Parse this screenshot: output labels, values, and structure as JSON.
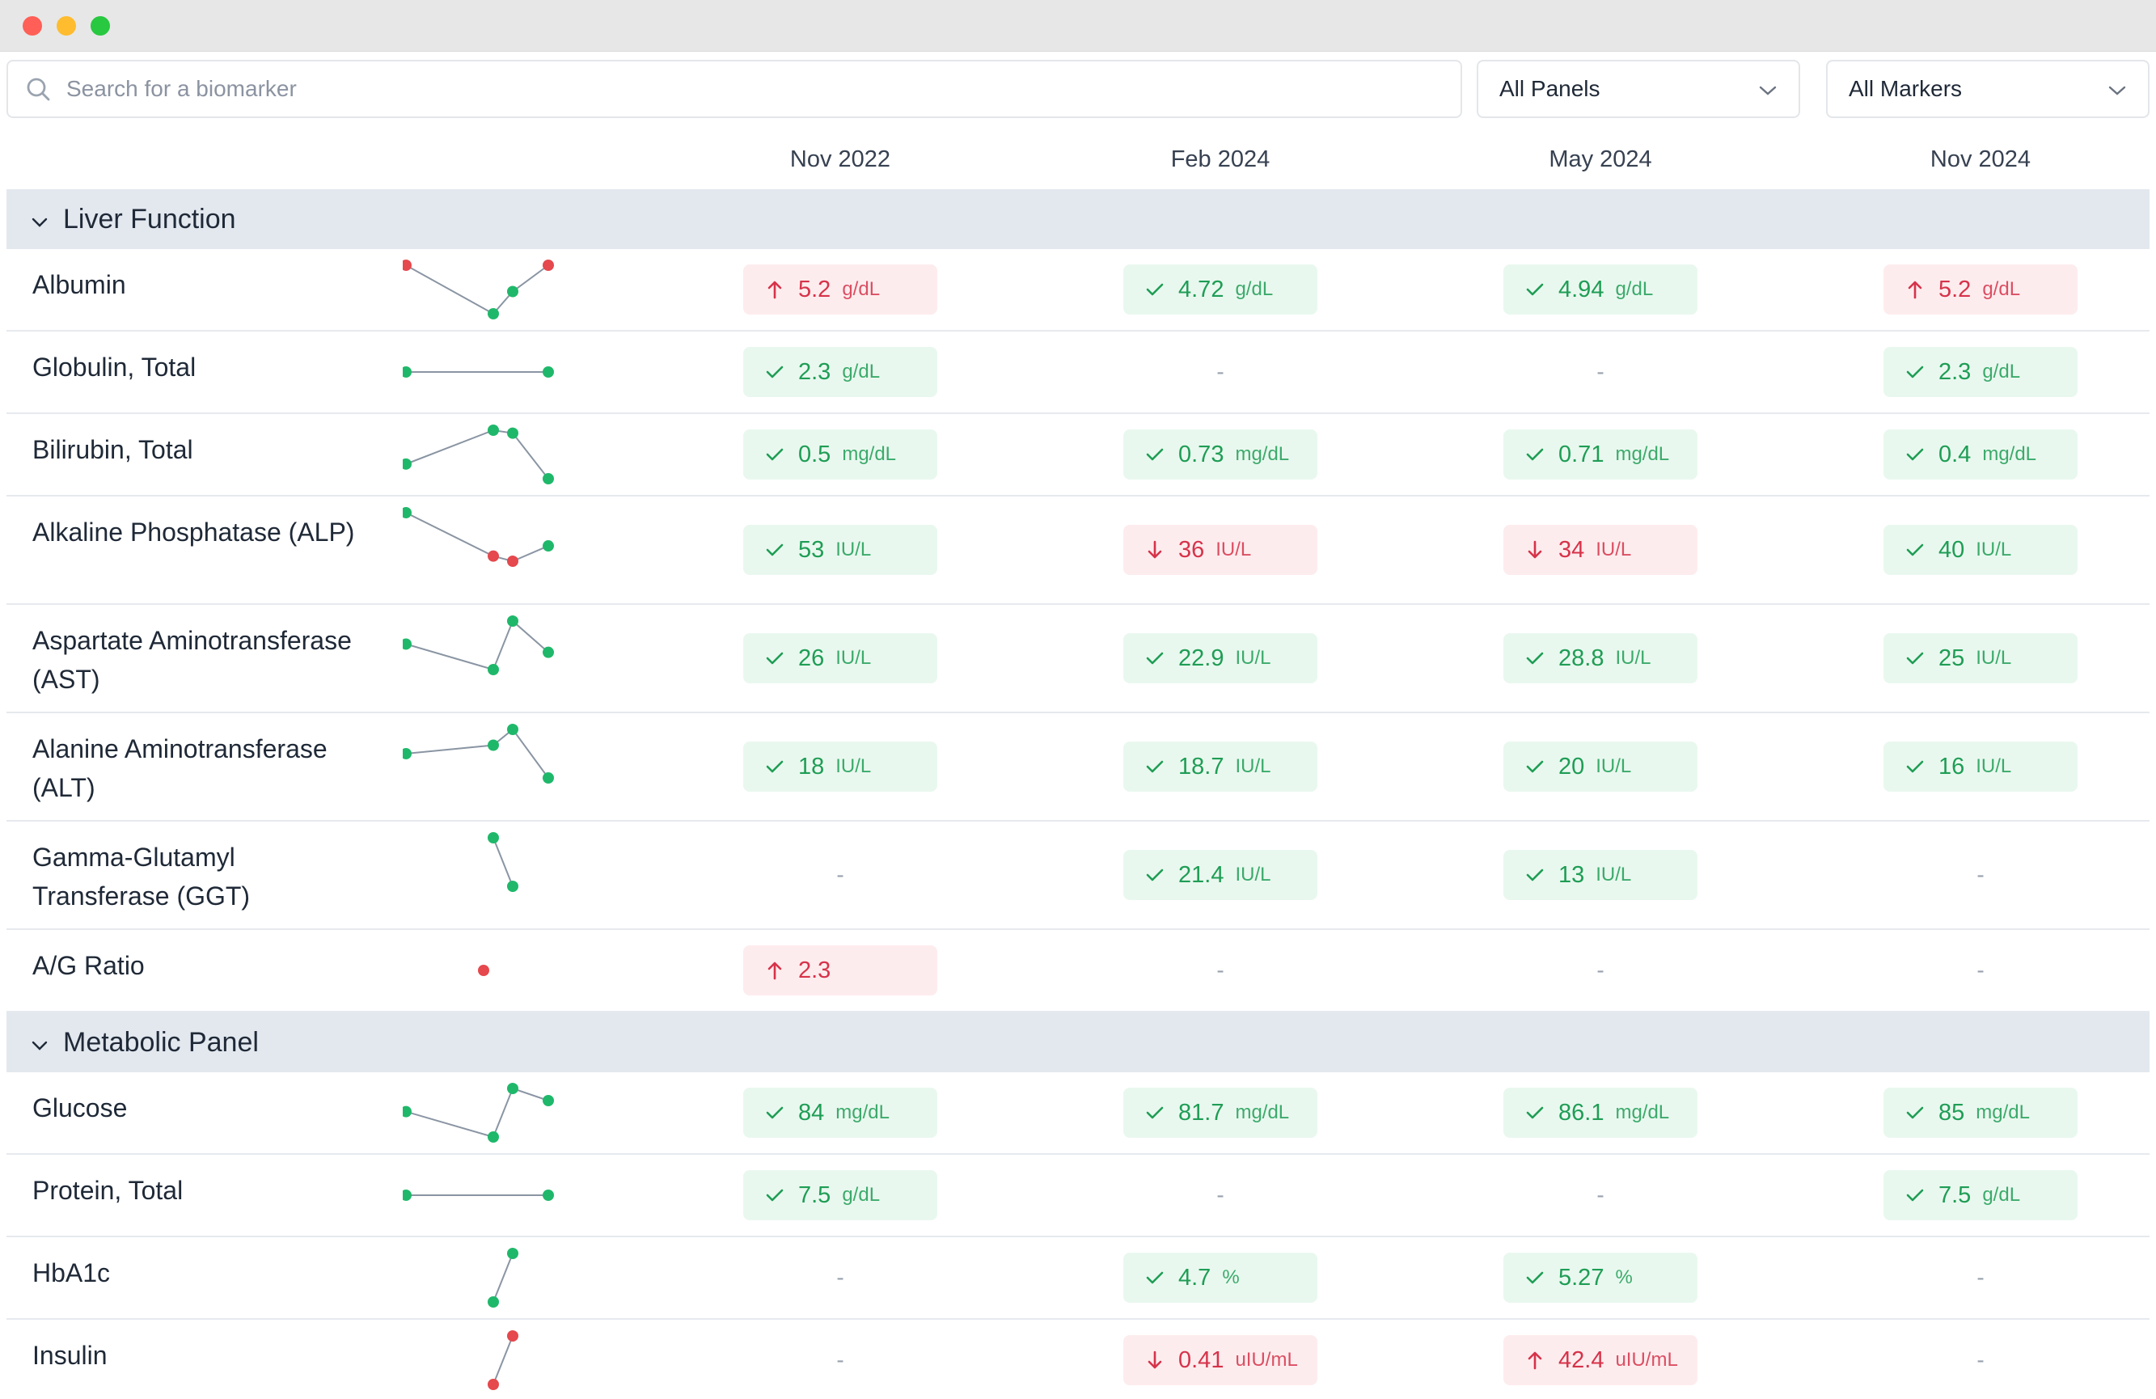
{
  "search": {
    "placeholder": "Search for a biomarker",
    "icon": "search-icon"
  },
  "filters": {
    "panels": "All Panels",
    "markers": "All Markers"
  },
  "columns": [
    "Nov 2022",
    "Feb 2024",
    "May 2024",
    "Nov 2024"
  ],
  "colors": {
    "ok": "#1f9d55",
    "flag": "#d6334a",
    "section": "#e3e8ef"
  },
  "sections": [
    {
      "title": "Liver Function",
      "rows": [
        {
          "name": "Albumin",
          "lines": 1,
          "values": [
            {
              "status": "high",
              "value": "5.2",
              "unit": "g/dL"
            },
            {
              "status": "ok",
              "value": "4.72",
              "unit": "g/dL"
            },
            {
              "status": "ok",
              "value": "4.94",
              "unit": "g/dL"
            },
            {
              "status": "high",
              "value": "5.2",
              "unit": "g/dL"
            }
          ]
        },
        {
          "name": "Globulin, Total",
          "lines": 1,
          "values": [
            {
              "status": "ok",
              "value": "2.3",
              "unit": "g/dL"
            },
            {
              "status": "none",
              "value": "-"
            },
            {
              "status": "none",
              "value": "-"
            },
            {
              "status": "ok",
              "value": "2.3",
              "unit": "g/dL"
            }
          ]
        },
        {
          "name": "Bilirubin, Total",
          "lines": 1,
          "values": [
            {
              "status": "ok",
              "value": "0.5",
              "unit": "mg/dL"
            },
            {
              "status": "ok",
              "value": "0.73",
              "unit": "mg/dL"
            },
            {
              "status": "ok",
              "value": "0.71",
              "unit": "mg/dL"
            },
            {
              "status": "ok",
              "value": "0.4",
              "unit": "mg/dL"
            }
          ]
        },
        {
          "name": "Alkaline Phosphatase (ALP)",
          "lines": 2,
          "values": [
            {
              "status": "ok",
              "value": "53",
              "unit": "IU/L"
            },
            {
              "status": "low",
              "value": "36",
              "unit": "IU/L"
            },
            {
              "status": "low",
              "value": "34",
              "unit": "IU/L"
            },
            {
              "status": "ok",
              "value": "40",
              "unit": "IU/L"
            }
          ]
        },
        {
          "name": "Aspartate Aminotransferase (AST)",
          "lines": 2,
          "values": [
            {
              "status": "ok",
              "value": "26",
              "unit": "IU/L"
            },
            {
              "status": "ok",
              "value": "22.9",
              "unit": "IU/L"
            },
            {
              "status": "ok",
              "value": "28.8",
              "unit": "IU/L"
            },
            {
              "status": "ok",
              "value": "25",
              "unit": "IU/L"
            }
          ]
        },
        {
          "name": "Alanine Aminotransferase (ALT)",
          "lines": 2,
          "values": [
            {
              "status": "ok",
              "value": "18",
              "unit": "IU/L"
            },
            {
              "status": "ok",
              "value": "18.7",
              "unit": "IU/L"
            },
            {
              "status": "ok",
              "value": "20",
              "unit": "IU/L"
            },
            {
              "status": "ok",
              "value": "16",
              "unit": "IU/L"
            }
          ]
        },
        {
          "name": "Gamma-Glutamyl Transferase (GGT)",
          "lines": 2,
          "values": [
            {
              "status": "none",
              "value": "-"
            },
            {
              "status": "ok",
              "value": "21.4",
              "unit": "IU/L"
            },
            {
              "status": "ok",
              "value": "13",
              "unit": "IU/L"
            },
            {
              "status": "none",
              "value": "-"
            }
          ]
        },
        {
          "name": "A/G Ratio",
          "lines": 1,
          "values": [
            {
              "status": "high",
              "value": "2.3",
              "unit": ""
            },
            {
              "status": "none",
              "value": "-"
            },
            {
              "status": "none",
              "value": "-"
            },
            {
              "status": "none",
              "value": "-"
            }
          ]
        }
      ]
    },
    {
      "title": "Metabolic Panel",
      "rows": [
        {
          "name": "Glucose",
          "lines": 1,
          "values": [
            {
              "status": "ok",
              "value": "84",
              "unit": "mg/dL"
            },
            {
              "status": "ok",
              "value": "81.7",
              "unit": "mg/dL"
            },
            {
              "status": "ok",
              "value": "86.1",
              "unit": "mg/dL"
            },
            {
              "status": "ok",
              "value": "85",
              "unit": "mg/dL"
            }
          ]
        },
        {
          "name": "Protein, Total",
          "lines": 1,
          "values": [
            {
              "status": "ok",
              "value": "7.5",
              "unit": "g/dL"
            },
            {
              "status": "none",
              "value": "-"
            },
            {
              "status": "none",
              "value": "-"
            },
            {
              "status": "ok",
              "value": "7.5",
              "unit": "g/dL"
            }
          ]
        },
        {
          "name": "HbA1c",
          "lines": 1,
          "values": [
            {
              "status": "none",
              "value": "-"
            },
            {
              "status": "ok",
              "value": "4.7",
              "unit": "%"
            },
            {
              "status": "ok",
              "value": "5.27",
              "unit": "%"
            },
            {
              "status": "none",
              "value": "-"
            }
          ]
        },
        {
          "name": "Insulin",
          "lines": 1,
          "values": [
            {
              "status": "none",
              "value": "-"
            },
            {
              "status": "low",
              "value": "0.41",
              "unit": "uIU/mL"
            },
            {
              "status": "high",
              "value": "42.4",
              "unit": "uIU/mL"
            },
            {
              "status": "none",
              "value": "-"
            }
          ]
        }
      ]
    }
  ]
}
